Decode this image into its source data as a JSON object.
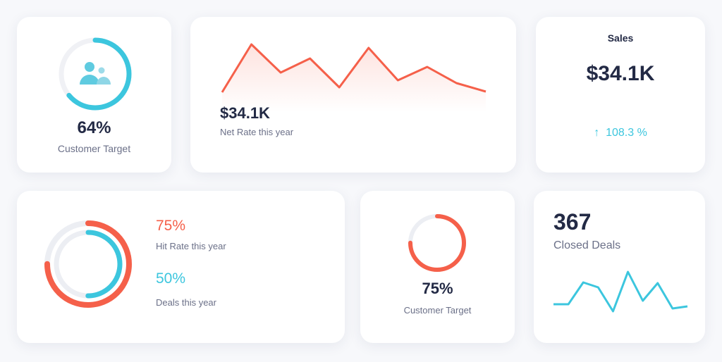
{
  "colors": {
    "cyan": "#3cc6de",
    "red": "#f5604a",
    "track": "#eceef3",
    "dark": "#232a45"
  },
  "customer_target_1": {
    "value": "64%",
    "label": "Customer Target",
    "progress": 64,
    "icon": "users-icon"
  },
  "net_rate": {
    "value": "$34.1K",
    "label": "Net Rate this year",
    "series": [
      4,
      72,
      32,
      52,
      11,
      67,
      21,
      40,
      17,
      5
    ]
  },
  "sales": {
    "title": "Sales",
    "value": "$34.1K",
    "change": "108.3 %",
    "change_icon": "arrow-up-icon"
  },
  "hit_deals": {
    "hit_value": "75%",
    "hit_label": "Hit Rate this year",
    "hit_progress": 75,
    "deals_value": "50%",
    "deals_label": "Deals this year",
    "deals_progress": 50
  },
  "customer_target_2": {
    "value": "75%",
    "label": "Customer Target",
    "progress": 75
  },
  "closed_deals": {
    "value": "367",
    "label": "Closed Deals",
    "series": [
      18,
      18,
      49,
      42,
      8,
      64,
      23,
      48,
      12,
      15
    ]
  }
}
